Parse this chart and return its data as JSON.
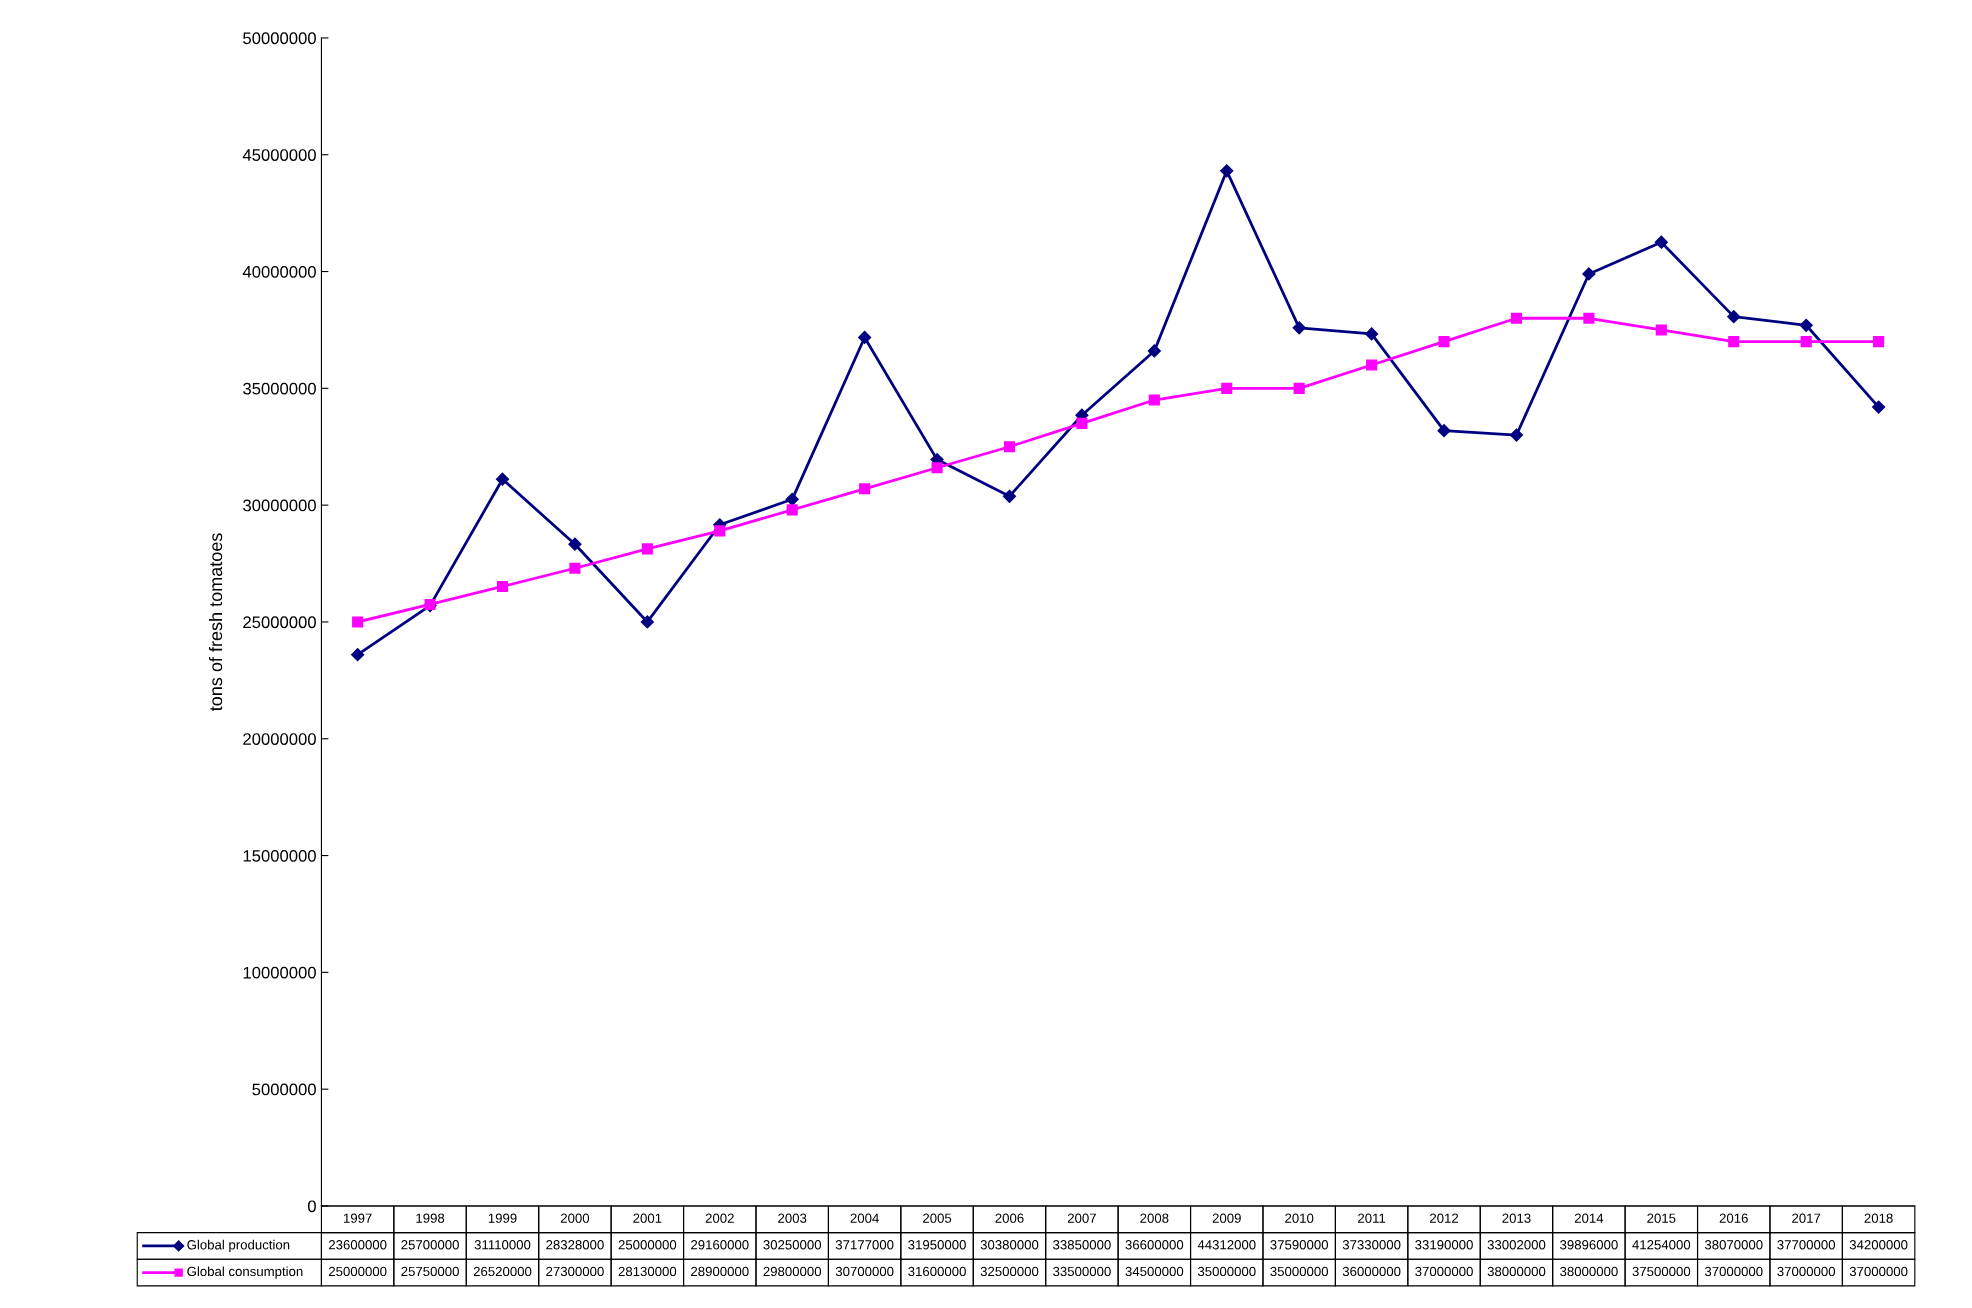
{
  "chart_data": {
    "type": "line",
    "ylabel": "tons of fresh tomatoes",
    "categories": [
      "1997",
      "1998",
      "1999",
      "2000",
      "2001",
      "2002",
      "2003",
      "2004",
      "2005",
      "2006",
      "2007",
      "2008",
      "2009",
      "2010",
      "2011",
      "2012",
      "2013",
      "2014",
      "2015",
      "2016",
      "2017",
      "2018"
    ],
    "series": [
      {
        "name": "Global production",
        "color": "#000080",
        "marker": "diamond",
        "values": [
          23600000,
          25700000,
          31110000,
          28328000,
          25000000,
          29160000,
          30250000,
          37177000,
          31950000,
          30380000,
          33850000,
          36600000,
          44312000,
          37590000,
          37330000,
          33190000,
          33002000,
          39896000,
          41254000,
          38070000,
          37700000,
          34200000
        ]
      },
      {
        "name": "Global consumption",
        "color": "#ff00ff",
        "marker": "square",
        "values": [
          25000000,
          25750000,
          26520000,
          27300000,
          28130000,
          28900000,
          29800000,
          30700000,
          31600000,
          32500000,
          33500000,
          34500000,
          35000000,
          35000000,
          36000000,
          37000000,
          38000000,
          38000000,
          37500000,
          37000000,
          37000000,
          37000000
        ]
      }
    ],
    "ylim": [
      0,
      50000000
    ],
    "yticks": [
      0,
      5000000,
      10000000,
      15000000,
      20000000,
      25000000,
      30000000,
      35000000,
      40000000,
      45000000,
      50000000
    ],
    "grid": false,
    "legend": "bottom",
    "data_labels": true,
    "line_style": "solid"
  }
}
